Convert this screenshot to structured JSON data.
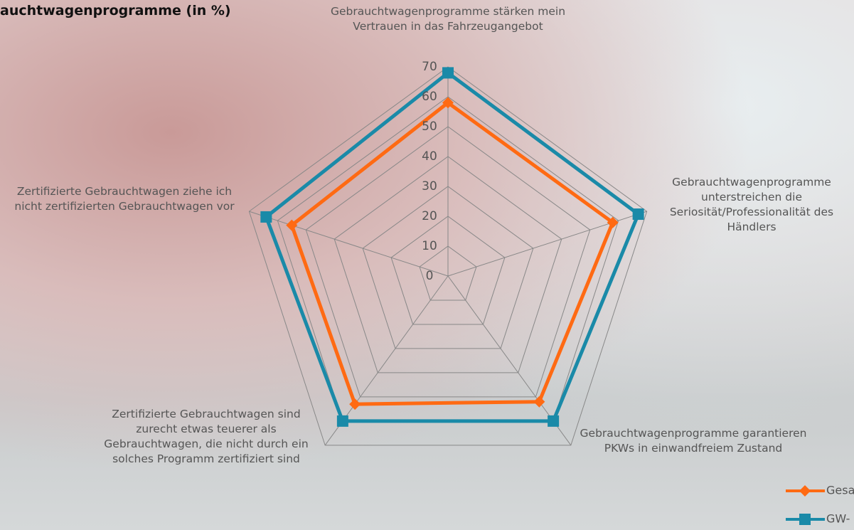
{
  "chart_data": {
    "type": "radar",
    "title": "auchtwagenprogramme (in %)",
    "categories": [
      "Gebrauchtwagenprogramme stärken mein Vertrauen in das Fahrzeugangebot",
      "Gebrauchtwagenprogramme unterstreichen die Seriosität/Professionalität des Händlers",
      "Gebrauchtwagenprogramme garantieren PKWs in einwandfreiem Zustand",
      "Zertifizierte Gebrauchtwagen sind zurecht etwas teuerer als Gebrauchtwagen, die nicht durch ein solches Programm zertifiziert sind",
      "Zertifizierte Gebrauchtwagen ziehe ich nicht zertifizierten Gebrauchtwagen vor"
    ],
    "series": [
      {
        "name": "Gesa",
        "color": "#ff6a13",
        "marker": "diamond",
        "values": [
          58,
          58,
          52,
          53,
          55
        ]
      },
      {
        "name": "GW-",
        "color": "#1a8aa8",
        "marker": "square",
        "values": [
          68,
          67,
          60,
          60,
          64
        ]
      }
    ],
    "ylim": [
      0,
      70
    ],
    "yticks": [
      0,
      10,
      20,
      30,
      40,
      50,
      60,
      70
    ],
    "grid": true
  }
}
